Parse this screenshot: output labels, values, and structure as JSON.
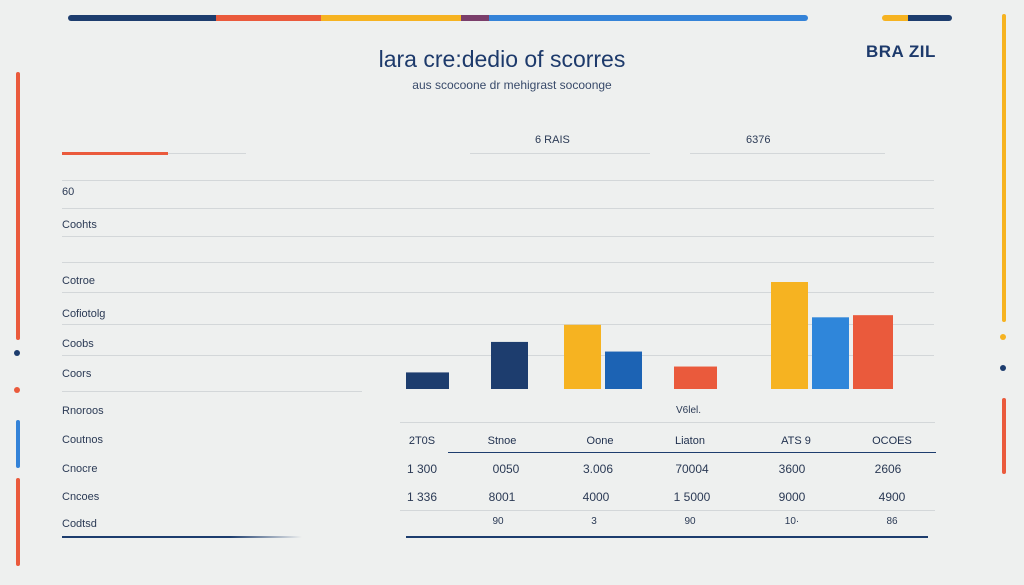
{
  "header": {
    "title": "lara cre:dedio of scorres",
    "subtitle": "aus scocoone dr mehigrast socoonge",
    "brand": "BRA ZIL",
    "col_a": "6 RAIS",
    "col_b": "6376"
  },
  "row_labels": [
    "60",
    "Coohts",
    "Cotroe",
    "Cofiotolg",
    "Coobs",
    "Coors",
    "Rnoroos",
    "Coutnos",
    "Cnocre",
    "Cncoes",
    "Codtsd"
  ],
  "chart_data": {
    "type": "bar",
    "title": "lara cre:dedio of scorres",
    "categories": [
      "",
      "",
      "",
      "",
      ""
    ],
    "series_values": [
      [
        0.155,
        null,
        null
      ],
      [
        0.44,
        null,
        null
      ],
      [
        0.6,
        0.35,
        null
      ],
      [
        0.21,
        null,
        null
      ],
      [
        1.0,
        0.67,
        0.69
      ]
    ],
    "bar_colors": [
      [
        "#1d3d6e"
      ],
      [
        "#1d3d6e"
      ],
      [
        "#f6b321",
        "#1c63b4"
      ],
      [
        "#ea5a3c"
      ],
      [
        "#f6b321",
        "#2f86da",
        "#ea5a3c"
      ]
    ],
    "ylim": [
      0,
      1
    ],
    "grid": true,
    "label_mid": "V6lel."
  },
  "table": {
    "columns": [
      "2T0S",
      "Stnoe",
      "Oone",
      "Liaton",
      "ATS  9",
      "OCOES"
    ],
    "rows": [
      [
        "1 300",
        "0050",
        "3.006",
        "70004",
        "3600",
        "2606"
      ],
      [
        "1 336",
        "8001",
        "4000",
        "1 5000",
        "9000",
        "4900"
      ],
      [
        "",
        "90",
        "3",
        "90",
        "10·",
        "86"
      ]
    ]
  },
  "colors": {
    "navy": "#1d3d6e",
    "orange": "#ea5a3c",
    "yellow": "#f6b321",
    "blue": "#2f86da",
    "background": "#eef0ef"
  }
}
